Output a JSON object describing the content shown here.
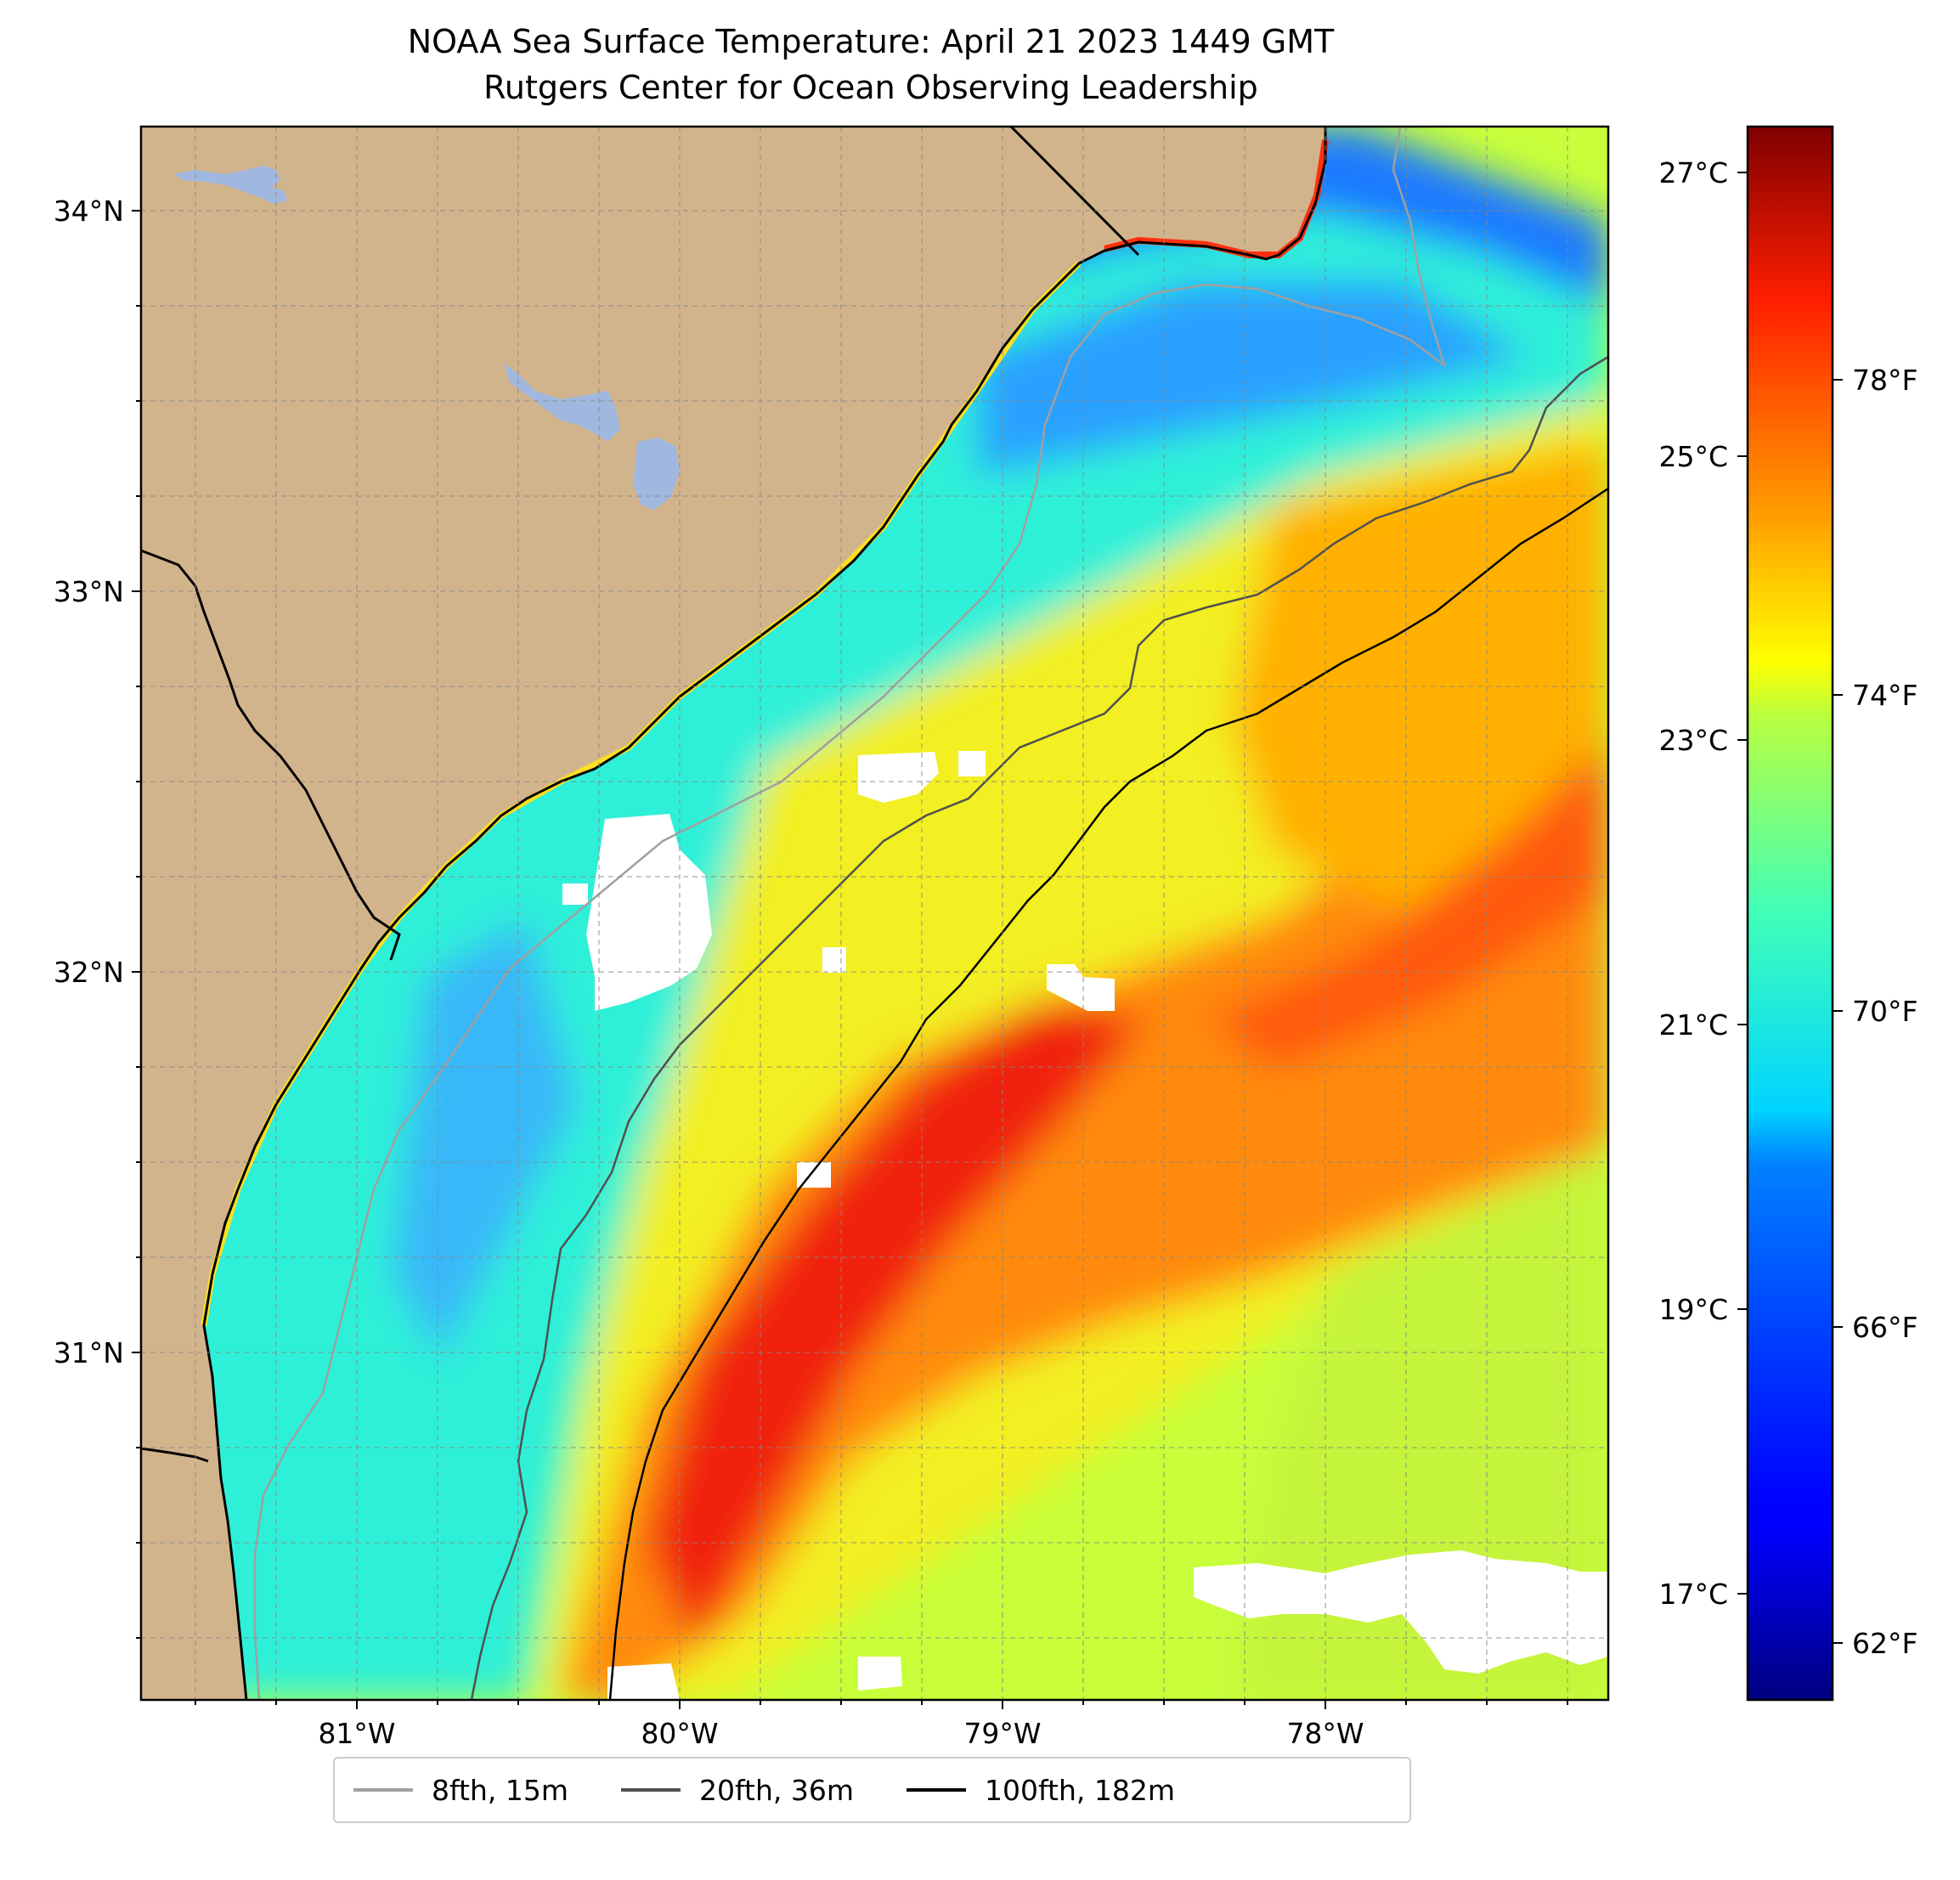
{
  "title": {
    "line1": "NOAA Sea Surface Temperature: April 21 2023 1449 GMT",
    "line2": "Rutgers Center for Ocean Observing Leadership"
  },
  "map": {
    "lon_ticks": [
      "81°W",
      "80°W",
      "79°W",
      "78°W"
    ],
    "lat_ticks": [
      "34°N",
      "33°N",
      "32°N",
      "31°N"
    ],
    "land_color": "#d2b48c",
    "lake_color": "#a0b8e0",
    "no_data_color": "#ffffff"
  },
  "colorbar": {
    "celsius_labels": [
      "27°C",
      "25°C",
      "23°C",
      "21°C",
      "19°C",
      "17°C"
    ],
    "fahrenheit_labels": [
      "78°F",
      "74°F",
      "70°F",
      "66°F",
      "62°F"
    ],
    "colormap": "jet"
  },
  "legend": {
    "items": [
      {
        "label": "8fth, 15m",
        "color": "#a0a0a0"
      },
      {
        "label": "20fth, 36m",
        "color": "#505050"
      },
      {
        "label": "100fth, 182m",
        "color": "#000000"
      }
    ]
  }
}
